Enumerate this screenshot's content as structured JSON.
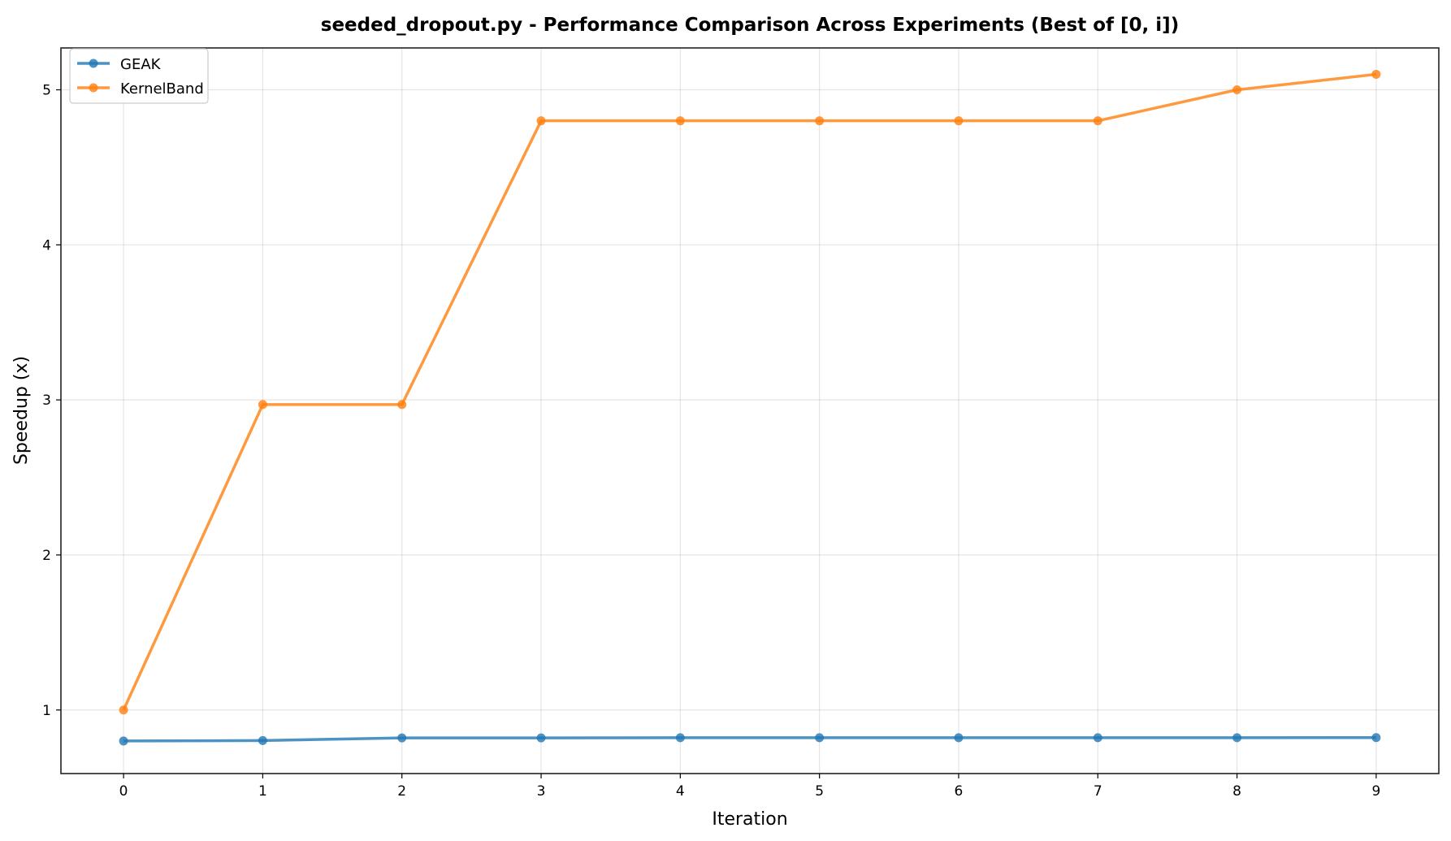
{
  "chart_data": {
    "type": "line",
    "title": "seeded_dropout.py - Performance Comparison Across Experiments (Best of [0, i])",
    "xlabel": "Iteration",
    "ylabel": "Speedup (x)",
    "x": [
      0,
      1,
      2,
      3,
      4,
      5,
      6,
      7,
      8,
      9
    ],
    "xticks": [
      "0",
      "1",
      "2",
      "3",
      "4",
      "5",
      "6",
      "7",
      "8",
      "9"
    ],
    "yticks": [
      "1",
      "2",
      "3",
      "4",
      "5"
    ],
    "xlim": [
      -0.45,
      9.45
    ],
    "ylim": [
      0.59,
      5.27
    ],
    "grid": true,
    "legend_position": "top-left",
    "series": [
      {
        "name": "GEAK",
        "color": "#1f77b4",
        "values": [
          0.8,
          0.803,
          0.82,
          0.82,
          0.821,
          0.821,
          0.821,
          0.821,
          0.821,
          0.822
        ]
      },
      {
        "name": "KernelBand",
        "color": "#ff7f0e",
        "values": [
          1.0,
          2.97,
          2.97,
          4.8,
          4.8,
          4.8,
          4.8,
          4.8,
          5.0,
          5.1
        ]
      }
    ]
  }
}
